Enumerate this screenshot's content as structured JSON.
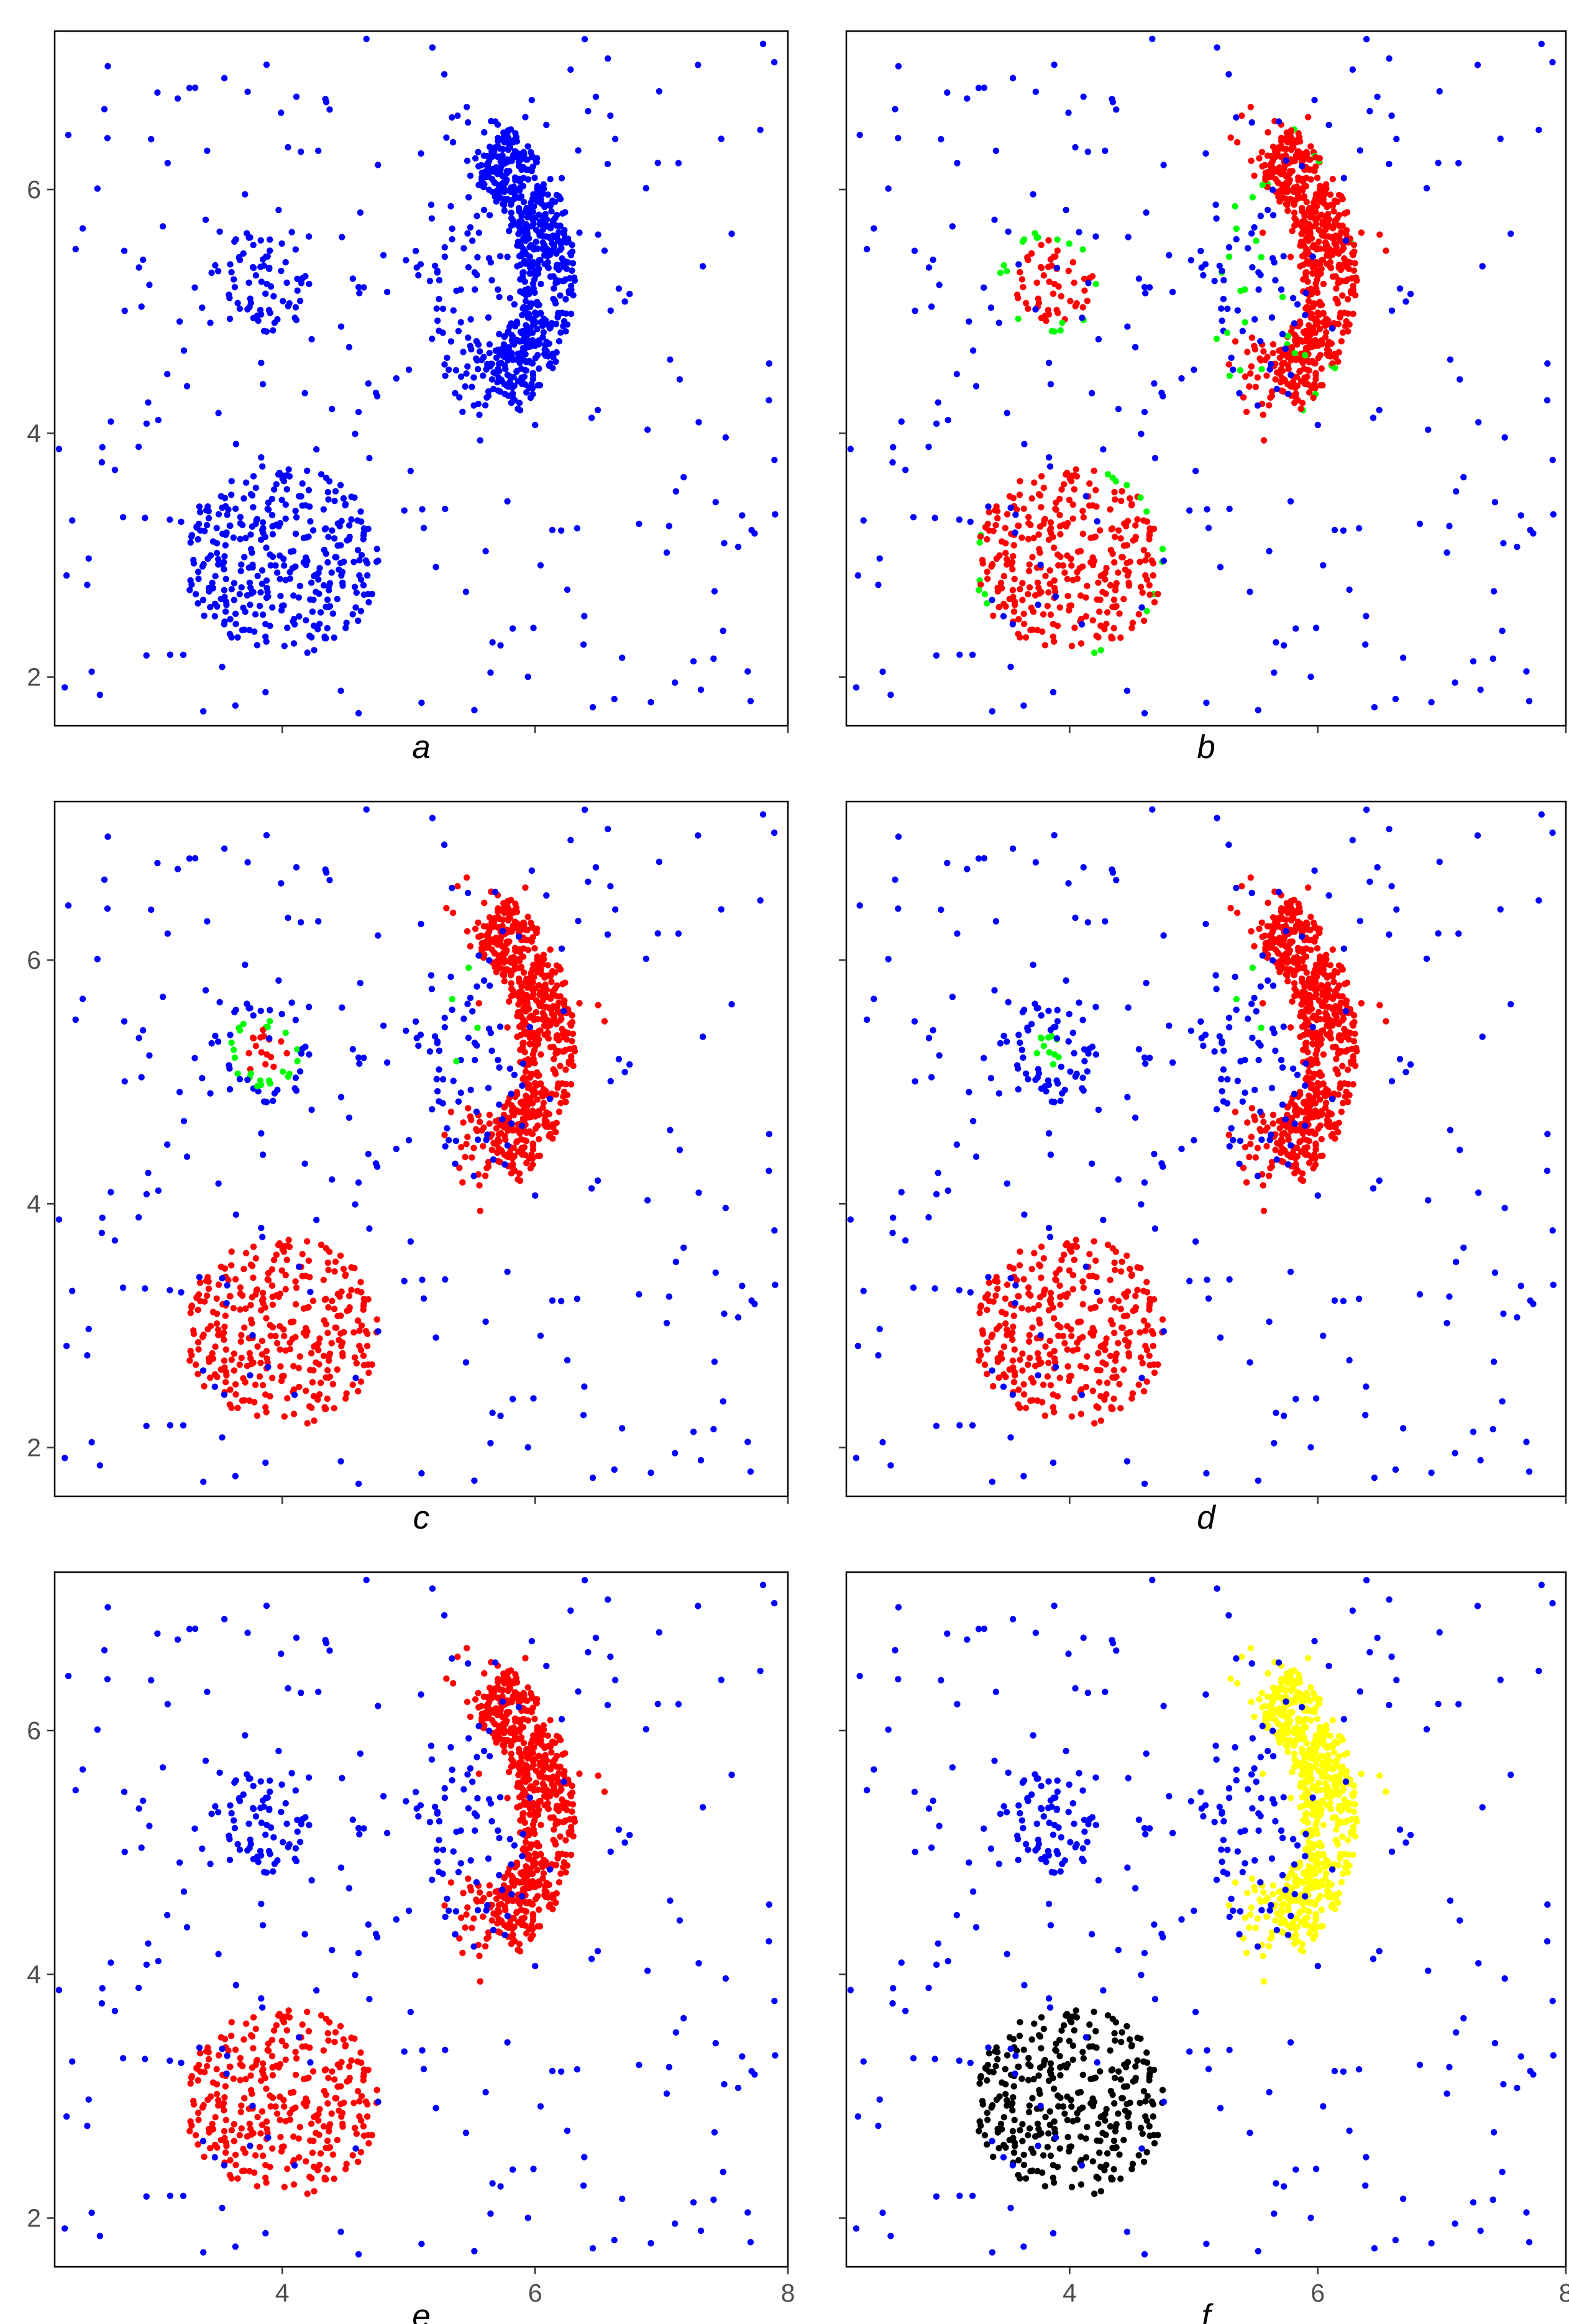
{
  "figure": {
    "panel_labels": [
      "a",
      "b",
      "c",
      "d",
      "e",
      "f"
    ]
  },
  "colors": {
    "noise": "#0000ff",
    "cluster": "#ff0000",
    "border": "#00ff00",
    "cluster_alt_1": "#ffff00",
    "cluster_alt_2": "#000000"
  },
  "chart_data": [
    {
      "panel": "a",
      "type": "scatter",
      "xlim": [
        2.2,
        8.0
      ],
      "ylim": [
        1.6,
        7.3
      ],
      "xticks": [],
      "yticks": [
        "2",
        "4",
        "6"
      ],
      "grid": false,
      "legend": "none",
      "series": [
        {
          "color": "#0000ff",
          "role": "all points (unclustered)"
        }
      ]
    },
    {
      "panel": "b",
      "type": "scatter",
      "xlim": [
        2.2,
        8.0
      ],
      "ylim": [
        1.6,
        7.3
      ],
      "xticks": [],
      "yticks": [],
      "grid": false,
      "legend": "none",
      "series": [
        {
          "color": "#0000ff",
          "role": "noise"
        },
        {
          "color": "#ff0000",
          "role": "core points"
        },
        {
          "color": "#00ff00",
          "role": "border points"
        }
      ]
    },
    {
      "panel": "c",
      "type": "scatter",
      "xlim": [
        2.2,
        8.0
      ],
      "ylim": [
        1.6,
        7.3
      ],
      "xticks": [],
      "yticks": [
        "2",
        "4",
        "6"
      ],
      "grid": false,
      "legend": "none",
      "series": [
        {
          "color": "#0000ff",
          "role": "noise"
        },
        {
          "color": "#ff0000",
          "role": "core points"
        },
        {
          "color": "#00ff00",
          "role": "border points"
        }
      ]
    },
    {
      "panel": "d",
      "type": "scatter",
      "xlim": [
        2.2,
        8.0
      ],
      "ylim": [
        1.6,
        7.3
      ],
      "xticks": [],
      "yticks": [],
      "grid": false,
      "legend": "none",
      "series": [
        {
          "color": "#0000ff",
          "role": "noise"
        },
        {
          "color": "#ff0000",
          "role": "core points"
        },
        {
          "color": "#00ff00",
          "role": "border points"
        }
      ]
    },
    {
      "panel": "e",
      "type": "scatter",
      "xlim": [
        2.2,
        8.0
      ],
      "ylim": [
        1.6,
        7.3
      ],
      "xticks": [
        "4",
        "6",
        "8"
      ],
      "yticks": [
        "2",
        "4",
        "6"
      ],
      "grid": false,
      "legend": "none",
      "series": [
        {
          "color": "#0000ff",
          "role": "noise"
        },
        {
          "color": "#ff0000",
          "role": "clusters"
        }
      ]
    },
    {
      "panel": "f",
      "type": "scatter",
      "xlim": [
        2.2,
        8.0
      ],
      "ylim": [
        1.6,
        7.3
      ],
      "xticks": [
        "4",
        "6",
        "8"
      ],
      "yticks": [],
      "grid": false,
      "legend": "none",
      "series": [
        {
          "color": "#0000ff",
          "role": "noise"
        },
        {
          "color": "#ffff00",
          "role": "cluster: arc"
        },
        {
          "color": "#000000",
          "role": "cluster: lower-left blob"
        }
      ]
    }
  ],
  "data_model": {
    "blob_lower_left": {
      "center": [
        4.0,
        2.95
      ],
      "radius": 0.78,
      "n": 320
    },
    "blob_small": {
      "center": [
        3.85,
        5.25
      ],
      "radius": 0.42,
      "n": 70
    },
    "arc": {
      "center": [
        5.2,
        5.3
      ],
      "radius": 1.15,
      "theta_range": [
        -0.95,
        1.05
      ],
      "thickness": 0.28,
      "n": 520
    },
    "arc_dense_knots": [
      [
        5.7,
        6.3
      ],
      [
        6.05,
        5.65
      ],
      [
        5.6,
        4.5
      ]
    ],
    "inner_cluster": {
      "center": [
        5.45,
        5.25
      ],
      "spread": [
        0.35,
        0.65
      ],
      "n": 55
    },
    "uniform_noise": {
      "xrange": [
        2.2,
        7.9
      ],
      "yrange": [
        1.7,
        7.25
      ],
      "n": 240
    }
  }
}
